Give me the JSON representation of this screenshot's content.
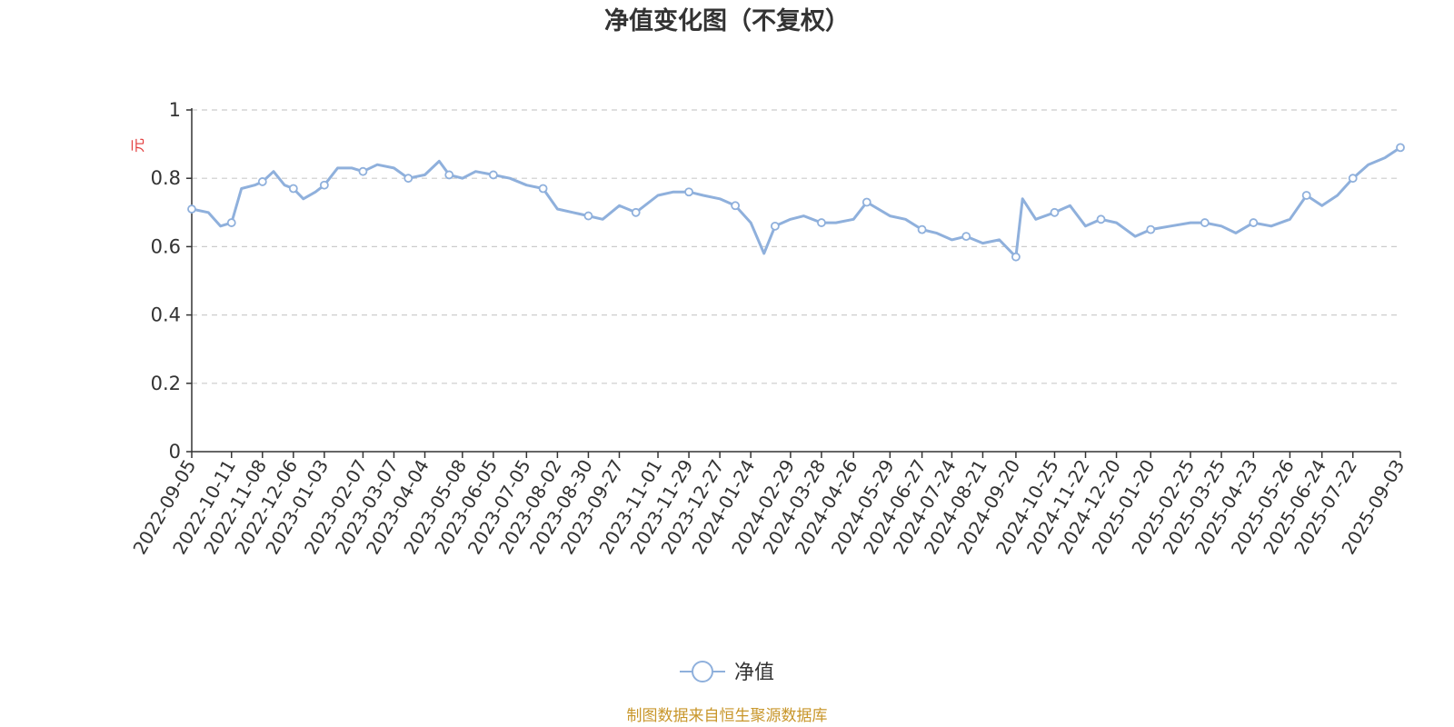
{
  "title": "净值变化图（不复权）",
  "source_text": "制图数据来自恒生聚源数据库",
  "colors": {
    "line": "#8fb0dc",
    "marker_fill": "#ffffff",
    "grid": "#cccccc",
    "axis": "#333333",
    "text": "#333333",
    "unit": "#e23a3a",
    "source": "#c8962a"
  },
  "chart_data": {
    "type": "line",
    "title": "净值变化图（不复权）",
    "ylabel": "元",
    "xlabel": "",
    "ylim": [
      0,
      1
    ],
    "y_ticks": [
      0,
      0.2,
      0.4,
      0.6,
      0.8,
      1
    ],
    "y_tick_labels": [
      "0",
      "0.2",
      "0.4",
      "0.6",
      "0.8",
      "1"
    ],
    "grid": true,
    "legend": {
      "position": "bottom-center",
      "entries": [
        "净值"
      ]
    },
    "x_tick_labels": [
      "2022-09-05",
      "2022-10-11",
      "2022-11-08",
      "2022-12-06",
      "2023-01-03",
      "2023-02-07",
      "2023-03-07",
      "2023-04-04",
      "2023-05-08",
      "2023-06-05",
      "2023-07-05",
      "2023-08-02",
      "2023-08-30",
      "2023-09-27",
      "2023-11-01",
      "2023-11-29",
      "2023-12-27",
      "2024-01-24",
      "2024-02-29",
      "2024-03-28",
      "2024-04-26",
      "2024-05-29",
      "2024-06-27",
      "2024-07-24",
      "2024-08-21",
      "2024-09-20",
      "2024-10-25",
      "2024-11-22",
      "2024-12-20",
      "2025-01-20",
      "2025-02-25",
      "2025-03-25",
      "2025-04-23",
      "2025-05-26",
      "2025-06-24",
      "2025-07-22",
      "2025-09-03"
    ],
    "series": [
      {
        "name": "净值",
        "x": [
          "2022-09-05",
          "2022-09-20",
          "2022-10-01",
          "2022-10-11",
          "2022-10-20",
          "2022-11-01",
          "2022-11-08",
          "2022-11-18",
          "2022-11-28",
          "2022-12-06",
          "2022-12-15",
          "2022-12-26",
          "2023-01-03",
          "2023-01-15",
          "2023-01-28",
          "2023-02-07",
          "2023-02-20",
          "2023-03-07",
          "2023-03-20",
          "2023-04-04",
          "2023-04-17",
          "2023-04-26",
          "2023-05-08",
          "2023-05-20",
          "2023-06-05",
          "2023-06-20",
          "2023-07-05",
          "2023-07-20",
          "2023-08-02",
          "2023-08-16",
          "2023-08-30",
          "2023-09-12",
          "2023-09-27",
          "2023-10-12",
          "2023-11-01",
          "2023-11-15",
          "2023-11-29",
          "2023-12-12",
          "2023-12-27",
          "2024-01-10",
          "2024-01-24",
          "2024-02-05",
          "2024-02-15",
          "2024-02-29",
          "2024-03-12",
          "2024-03-28",
          "2024-04-10",
          "2024-04-26",
          "2024-05-08",
          "2024-05-29",
          "2024-06-12",
          "2024-06-27",
          "2024-07-10",
          "2024-07-24",
          "2024-08-06",
          "2024-08-21",
          "2024-09-05",
          "2024-09-20",
          "2024-09-26",
          "2024-10-08",
          "2024-10-25",
          "2024-11-08",
          "2024-11-22",
          "2024-12-06",
          "2024-12-20",
          "2025-01-06",
          "2025-01-20",
          "2025-02-07",
          "2025-02-25",
          "2025-03-10",
          "2025-03-25",
          "2025-04-07",
          "2025-04-23",
          "2025-05-09",
          "2025-05-26",
          "2025-06-10",
          "2025-06-24",
          "2025-07-08",
          "2025-07-22",
          "2025-08-05",
          "2025-08-20",
          "2025-09-03"
        ],
        "values": [
          0.71,
          0.7,
          0.66,
          0.67,
          0.77,
          0.78,
          0.79,
          0.82,
          0.78,
          0.77,
          0.74,
          0.76,
          0.78,
          0.83,
          0.83,
          0.82,
          0.84,
          0.83,
          0.8,
          0.81,
          0.85,
          0.81,
          0.8,
          0.82,
          0.81,
          0.8,
          0.78,
          0.77,
          0.71,
          0.7,
          0.69,
          0.68,
          0.72,
          0.7,
          0.75,
          0.76,
          0.76,
          0.75,
          0.74,
          0.72,
          0.67,
          0.58,
          0.66,
          0.68,
          0.69,
          0.67,
          0.67,
          0.68,
          0.73,
          0.69,
          0.68,
          0.65,
          0.64,
          0.62,
          0.63,
          0.61,
          0.62,
          0.57,
          0.74,
          0.68,
          0.7,
          0.72,
          0.66,
          0.68,
          0.67,
          0.63,
          0.65,
          0.66,
          0.67,
          0.67,
          0.66,
          0.64,
          0.67,
          0.66,
          0.68,
          0.75,
          0.72,
          0.75,
          0.8,
          0.84,
          0.86,
          0.89
        ]
      }
    ]
  }
}
